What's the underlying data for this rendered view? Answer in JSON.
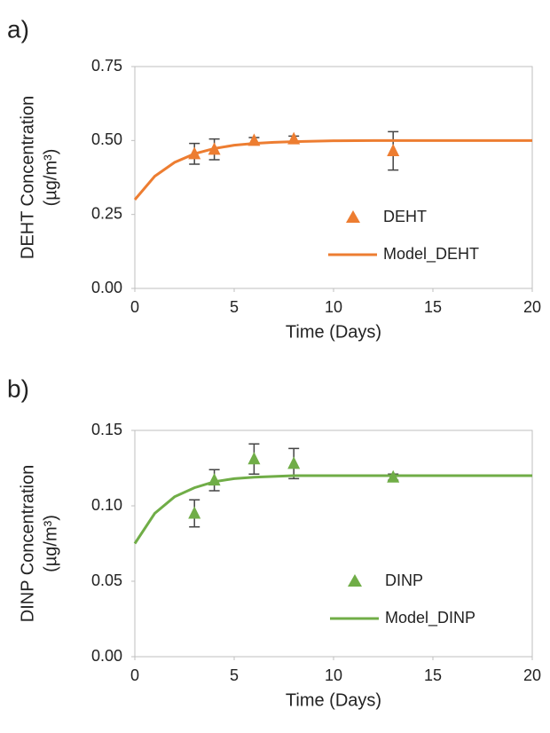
{
  "chart_data": [
    {
      "type": "scatter",
      "panel_label": "a)",
      "xlabel": "Time (Days)",
      "ylabel": [
        "DEHT Concentration",
        "(µg/m³)"
      ],
      "xlim": [
        0,
        20
      ],
      "xticks": [
        0,
        5,
        10,
        15,
        20
      ],
      "ylim": [
        0,
        0.75
      ],
      "yticks": [
        {
          "value": 0,
          "label": "0.00"
        },
        {
          "value": 0.25,
          "label": "0.25"
        },
        {
          "value": 0.5,
          "label": "0.50"
        },
        {
          "value": 0.75,
          "label": "0.75"
        }
      ],
      "series": [
        {
          "name": "DEHT",
          "kind": "markers",
          "color": "#ed7d31",
          "x": [
            3,
            4,
            6,
            8,
            13
          ],
          "values": [
            0.455,
            0.47,
            0.5,
            0.505,
            0.465
          ],
          "errors": [
            0.035,
            0.035,
            0.01,
            0.01,
            0.065
          ]
        },
        {
          "name": "Model_DEHT",
          "kind": "line",
          "color": "#ed7d31",
          "x": [
            0,
            1,
            2,
            3,
            4,
            5,
            6,
            7,
            8,
            10,
            12,
            15,
            20
          ],
          "values": [
            0.3,
            0.379,
            0.426,
            0.455,
            0.473,
            0.484,
            0.49,
            0.494,
            0.496,
            0.499,
            0.5,
            0.5,
            0.5
          ]
        }
      ]
    },
    {
      "type": "scatter",
      "panel_label": "b)",
      "xlabel": "Time (Days)",
      "ylabel": [
        "DINP Concentration",
        "(µg/m³)"
      ],
      "xlim": [
        0,
        20
      ],
      "xticks": [
        0,
        5,
        10,
        15,
        20
      ],
      "ylim": [
        0,
        0.15
      ],
      "yticks": [
        {
          "value": 0,
          "label": "0.00"
        },
        {
          "value": 0.05,
          "label": "0.05"
        },
        {
          "value": 0.1,
          "label": "0.10"
        },
        {
          "value": 0.15,
          "label": "0.15"
        }
      ],
      "series": [
        {
          "name": "DINP",
          "kind": "markers",
          "color": "#70ad47",
          "x": [
            3,
            4,
            6,
            8,
            13
          ],
          "values": [
            0.095,
            0.117,
            0.131,
            0.128,
            0.119
          ],
          "errors": [
            0.009,
            0.007,
            0.01,
            0.01,
            0.002
          ]
        },
        {
          "name": "Model_DINP",
          "kind": "line",
          "color": "#70ad47",
          "x": [
            0,
            1,
            2,
            3,
            4,
            5,
            6,
            7,
            8,
            10,
            12,
            15,
            20
          ],
          "values": [
            0.075,
            0.095,
            0.106,
            0.112,
            0.116,
            0.118,
            0.119,
            0.1195,
            0.12,
            0.12,
            0.12,
            0.12,
            0.12
          ]
        }
      ]
    }
  ]
}
